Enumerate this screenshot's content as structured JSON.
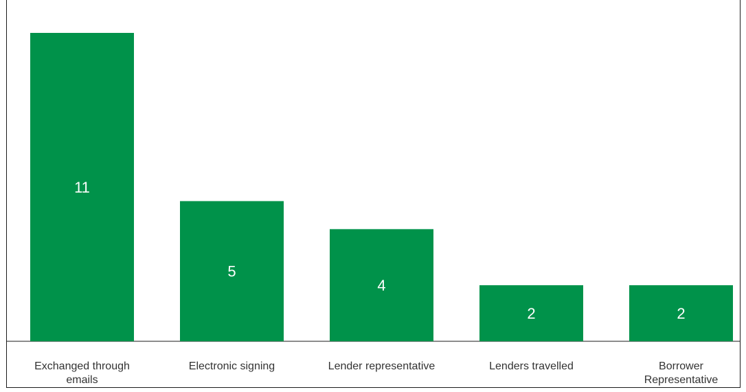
{
  "chart_data": {
    "type": "bar",
    "categories": [
      [
        "Exchanged through",
        "emails"
      ],
      [
        "Electronic signing"
      ],
      [
        "Lender representative"
      ],
      [
        "Lenders travelled"
      ],
      [
        "Borrower",
        "Representative"
      ]
    ],
    "values": [
      11,
      5,
      4,
      2,
      2
    ],
    "ylim": [
      0,
      11
    ],
    "bar_color": "#00924a",
    "label_color": "#ffffff",
    "grid": false,
    "legend": "none"
  }
}
